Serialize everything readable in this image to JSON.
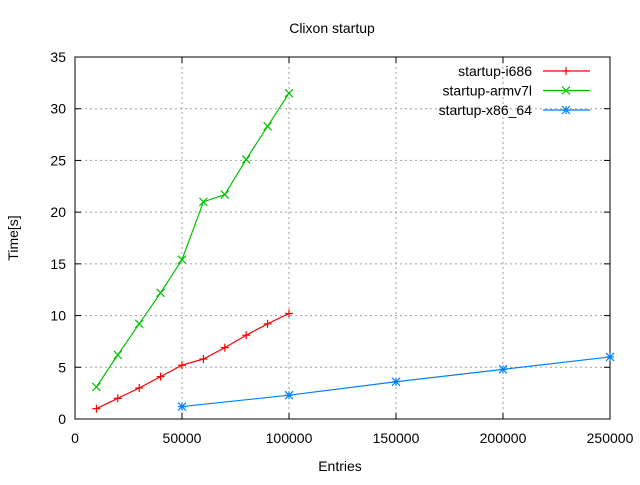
{
  "chart_data": {
    "type": "line",
    "title": "Clixon startup",
    "xlabel": "Entries",
    "ylabel": "Time[s]",
    "xlim": [
      0,
      250000
    ],
    "ylim": [
      0,
      35
    ],
    "xticks": [
      "0",
      "50000",
      "100000",
      "150000",
      "200000",
      "250000"
    ],
    "yticks": [
      "0",
      "5",
      "10",
      "15",
      "20",
      "25",
      "30",
      "35"
    ],
    "grid": true,
    "legend_position": "top-right",
    "series": [
      {
        "name": "startup-i686",
        "color": "#ff0000",
        "marker": "plus",
        "x": [
          10000,
          20000,
          30000,
          40000,
          50000,
          60000,
          70000,
          80000,
          90000,
          100000
        ],
        "y": [
          1.0,
          2.0,
          3.0,
          4.1,
          5.2,
          5.8,
          6.9,
          8.1,
          9.2,
          10.2
        ]
      },
      {
        "name": "startup-armv7l",
        "color": "#00c000",
        "marker": "cross",
        "x": [
          10000,
          20000,
          30000,
          40000,
          50000,
          60000,
          70000,
          80000,
          90000,
          100000
        ],
        "y": [
          3.1,
          6.2,
          9.2,
          12.2,
          15.4,
          21.0,
          21.7,
          25.1,
          28.3,
          31.5
        ]
      },
      {
        "name": "startup-x86_64",
        "color": "#0080ff",
        "marker": "star",
        "x": [
          50000,
          100000,
          150000,
          200000,
          250000
        ],
        "y": [
          1.2,
          2.3,
          3.6,
          4.8,
          6.0
        ]
      }
    ]
  }
}
